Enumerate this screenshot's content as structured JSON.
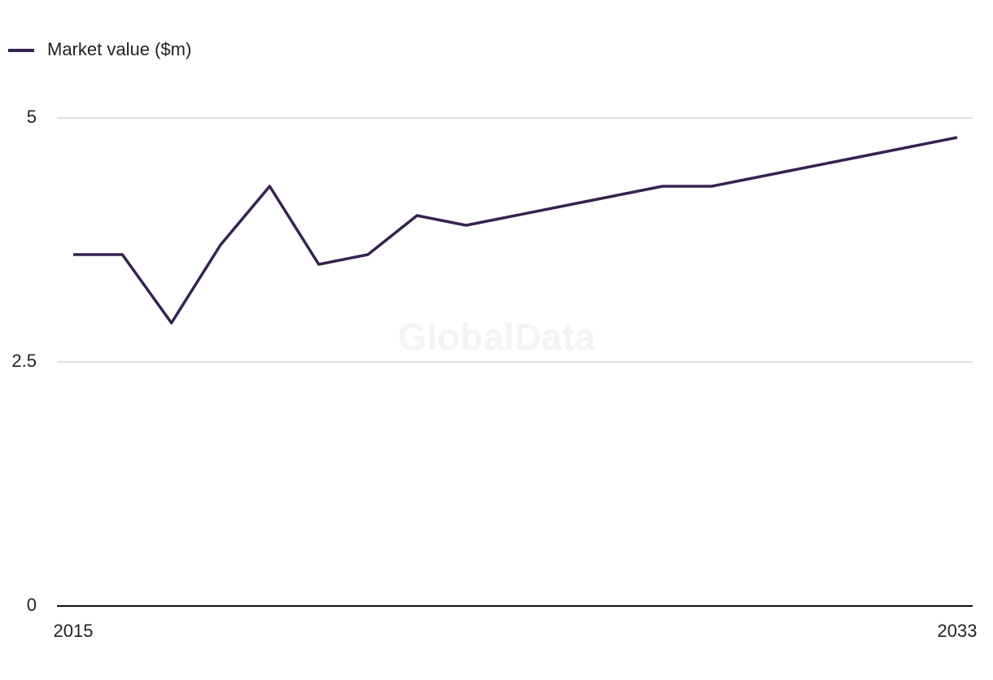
{
  "chart_data": {
    "type": "line",
    "watermark": "GlobalData",
    "x": [
      2015,
      2016,
      2017,
      2018,
      2019,
      2020,
      2021,
      2022,
      2023,
      2024,
      2025,
      2026,
      2027,
      2028,
      2029,
      2030,
      2031,
      2032,
      2033
    ],
    "series": [
      {
        "name": "Market value ($m)",
        "color": "#36234f",
        "values": [
          3.6,
          3.6,
          2.9,
          3.7,
          4.3,
          3.5,
          3.6,
          4.0,
          3.9,
          4.0,
          4.1,
          4.2,
          4.3,
          4.3,
          4.4,
          4.5,
          4.6,
          4.7,
          4.8
        ]
      }
    ],
    "xlim": [
      2015,
      2033
    ],
    "xticks": [
      2015,
      2033
    ],
    "ylim": [
      0,
      5
    ],
    "yticks": [
      0,
      2.5,
      5
    ],
    "grid": true,
    "legend": "top-left"
  }
}
